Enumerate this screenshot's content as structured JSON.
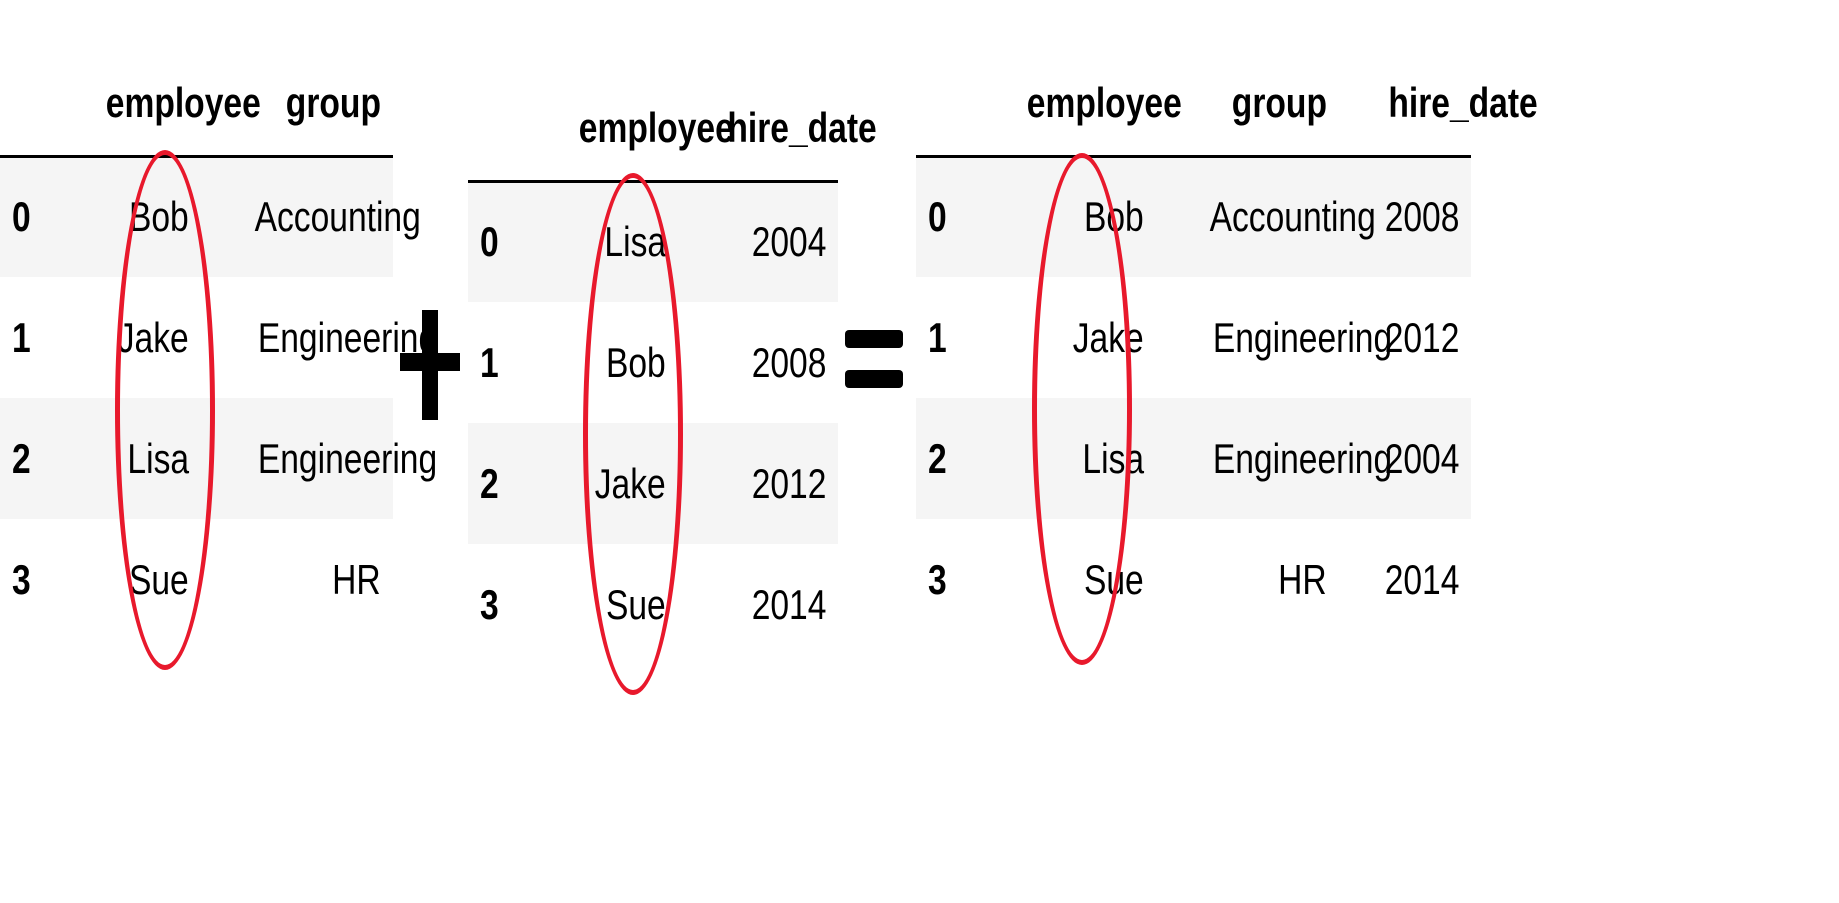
{
  "tables": [
    {
      "columns": [
        "employee",
        "group"
      ],
      "rows": [
        {
          "index": "0",
          "employee": "Bob",
          "group": "Accounting"
        },
        {
          "index": "1",
          "employee": "Jake",
          "group": "Engineering"
        },
        {
          "index": "2",
          "employee": "Lisa",
          "group": "Engineering"
        },
        {
          "index": "3",
          "employee": "Sue",
          "group": "HR"
        }
      ]
    },
    {
      "columns": [
        "employee",
        "hire_date"
      ],
      "rows": [
        {
          "index": "0",
          "employee": "Lisa",
          "hire_date": "2004"
        },
        {
          "index": "1",
          "employee": "Bob",
          "hire_date": "2008"
        },
        {
          "index": "2",
          "employee": "Jake",
          "hire_date": "2012"
        },
        {
          "index": "3",
          "employee": "Sue",
          "hire_date": "2014"
        }
      ]
    },
    {
      "columns": [
        "employee",
        "group",
        "hire_date"
      ],
      "rows": [
        {
          "index": "0",
          "employee": "Bob",
          "group": "Accounting",
          "hire_date": "2008"
        },
        {
          "index": "1",
          "employee": "Jake",
          "group": "Engineering",
          "hire_date": "2012"
        },
        {
          "index": "2",
          "employee": "Lisa",
          "group": "Engineering",
          "hire_date": "2004"
        },
        {
          "index": "3",
          "employee": "Sue",
          "group": "HR",
          "hire_date": "2014"
        }
      ]
    }
  ],
  "operators": {
    "plus": "plus-sign",
    "equals": "equals-sign"
  },
  "colors": {
    "highlight": "#e8192c",
    "stripe": "#f5f5f5",
    "text": "#000000"
  }
}
